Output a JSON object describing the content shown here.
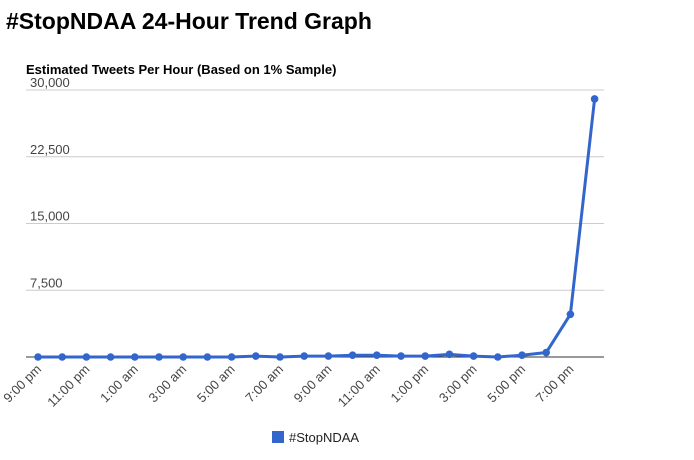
{
  "page": {
    "title": "#StopNDAA 24-Hour Trend Graph"
  },
  "chart_data": {
    "type": "line",
    "title": "Estimated Tweets Per Hour (Based on 1% Sample)",
    "xlabel": "",
    "ylabel": "",
    "ylim": [
      0,
      30000
    ],
    "yticks": [
      0,
      7500,
      15000,
      22500,
      30000
    ],
    "ytick_labels": [
      "",
      "7,500",
      "15,000",
      "22,500",
      "30,000"
    ],
    "xtick_labels": [
      "9:00 pm",
      "11:00 pm",
      "1:00 am",
      "3:00 am",
      "5:00 am",
      "7:00 am",
      "9:00 am",
      "11:00 am",
      "1:00 pm",
      "3:00 pm",
      "5:00 pm",
      "7:00 pm"
    ],
    "x": [
      "9:00 pm",
      "10:00 pm",
      "11:00 pm",
      "12:00 am",
      "1:00 am",
      "2:00 am",
      "3:00 am",
      "4:00 am",
      "5:00 am",
      "6:00 am",
      "7:00 am",
      "8:00 am",
      "9:00 am",
      "10:00 am",
      "11:00 am",
      "12:00 pm",
      "1:00 pm",
      "2:00 pm",
      "3:00 pm",
      "4:00 pm",
      "5:00 pm",
      "6:00 pm",
      "7:00 pm",
      "8:00 pm"
    ],
    "series": [
      {
        "name": "#StopNDAA",
        "color": "#3366cc",
        "values": [
          0,
          0,
          0,
          0,
          0,
          0,
          0,
          0,
          0,
          100,
          0,
          100,
          100,
          200,
          200,
          100,
          100,
          300,
          100,
          0,
          200,
          500,
          4800,
          29000
        ]
      }
    ],
    "grid": true,
    "legend": "bottom"
  }
}
